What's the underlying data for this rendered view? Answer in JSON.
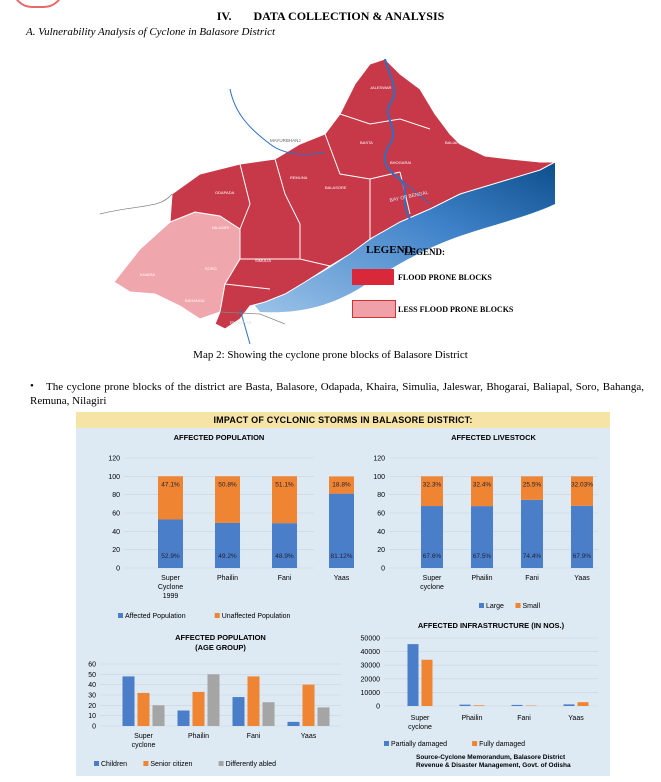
{
  "section": {
    "number": "IV.",
    "title": "DATA COLLECTION & ANALYSIS"
  },
  "subsection": "A.  Vulnerability Analysis of Cyclone in Balasore District",
  "map": {
    "legend_title": "LEGEND:",
    "legend_title_overlap": "LEGEND:",
    "legend_items": [
      {
        "label": "FLOOD PRONE BLOCKS",
        "color": "#d9283a"
      },
      {
        "label": "LESS FLOOD PRONE BLOCKS",
        "color": "#f0a0a8"
      }
    ],
    "place_labels": [
      "MAYURBHANJ",
      "BHADRAK",
      "BAY OF BENGAL",
      "JALESWAR",
      "BASTA",
      "BALIAPAL",
      "BHOGARAI",
      "BALASORE",
      "REMUNA",
      "ODAPADA",
      "NILAGIRI",
      "KHAIRA",
      "SORO",
      "SIMULIA",
      "BAHANGA"
    ],
    "caption": "Map 2: Showing the cyclone prone blocks of Balasore District"
  },
  "bullet": "The cyclone prone blocks of the district are Basta, Balasore, Odapada, Khaira, Simulia, Jaleswar, Bhogarai, Baliapal, Soro, Bahanga, Remuna, Nilagiri",
  "infographic": {
    "title": "IMPACT OF CYCLONIC STORMS IN BALASORE DISTRICT:",
    "source": [
      "Source-Cyclone Memorandum, Balasore District",
      "Revenue & Disaster Management, Govt. of Odisha"
    ]
  },
  "colors": {
    "blue": "#4a7ec8",
    "orange": "#ef8432",
    "gray": "#a5a5a5"
  },
  "chart_data": [
    {
      "type": "bar",
      "stacked": true,
      "title": "AFFECTED POPULATION",
      "categories": [
        "Super Cyclone 1999",
        "Phailin",
        "Fani",
        "Yaas"
      ],
      "series": [
        {
          "name": "Affected Population",
          "values": [
            52.9,
            49.2,
            48.9,
            81.12
          ],
          "labels": [
            "52.9%",
            "49.2%",
            "48.9%",
            "81.12%"
          ]
        },
        {
          "name": "Unaffected Population",
          "values": [
            47.1,
            50.8,
            51.1,
            18.8
          ],
          "labels": [
            "47.1%",
            "50.8%",
            "51.1%",
            "18.8%"
          ]
        }
      ],
      "ylim": [
        0,
        120
      ],
      "yticks": [
        "0",
        "20",
        "40",
        "60",
        "80",
        "100",
        "120"
      ],
      "legend": "bottom"
    },
    {
      "type": "bar",
      "stacked": true,
      "title": "AFFECTED LIVESTOCK",
      "categories": [
        "Super cyclone",
        "Phailin",
        "Fani",
        "Yaas"
      ],
      "series": [
        {
          "name": "Large",
          "values": [
            67.6,
            67.5,
            74.4,
            67.9
          ],
          "labels": [
            "67.6%",
            "67.5%",
            "74.4%",
            "67.9%"
          ]
        },
        {
          "name": "Small",
          "values": [
            32.3,
            32.4,
            25.5,
            32.03
          ],
          "labels": [
            "32.3%",
            "32.4%",
            "25.5%",
            "32.03%"
          ]
        }
      ],
      "ylim": [
        0,
        120
      ],
      "yticks": [
        "0",
        "20",
        "40",
        "60",
        "80",
        "100",
        "120"
      ],
      "legend": "bottom"
    },
    {
      "type": "bar",
      "title": "AFFECTED POPULATION (AGE GROUP)",
      "categories": [
        "Super cyclone",
        "Phailin",
        "Fani",
        "Yaas"
      ],
      "series": [
        {
          "name": "Children",
          "values": [
            48,
            15,
            28,
            4
          ]
        },
        {
          "name": "Senior citizen",
          "values": [
            32,
            33,
            48,
            40
          ]
        },
        {
          "name": "Differently abled",
          "values": [
            20,
            50,
            23,
            18
          ]
        }
      ],
      "ylim": [
        0,
        60
      ],
      "yticks": [
        "0",
        "10",
        "20",
        "30",
        "40",
        "50",
        "60"
      ],
      "legend": "bottom"
    },
    {
      "type": "bar",
      "title": "AFFECTED INFRASTRUCTURE (IN NOS.)",
      "categories": [
        "Super cyclone",
        "Phailin",
        "Fani",
        "Yaas"
      ],
      "series": [
        {
          "name": "Partially damaged",
          "values": [
            45500,
            1000,
            800,
            1200
          ]
        },
        {
          "name": "Fully damaged",
          "values": [
            34000,
            500,
            300,
            2800
          ]
        }
      ],
      "ylim": [
        0,
        50000
      ],
      "yticks": [
        "0",
        "10000",
        "20000",
        "30000",
        "40000",
        "50000"
      ],
      "legend": "bottom"
    }
  ]
}
